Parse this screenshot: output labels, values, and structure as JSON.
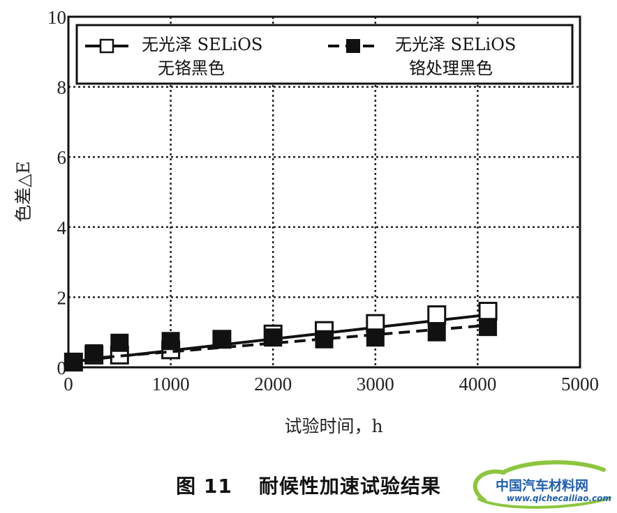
{
  "chart_data": {
    "type": "line",
    "title": "",
    "xlabel": "试验时间，h",
    "ylabel": "色差△E",
    "xlim": [
      0,
      5000
    ],
    "ylim": [
      0,
      10
    ],
    "xticks": [
      "0",
      "1000",
      "2000",
      "3000",
      "4000",
      "5000"
    ],
    "yticks": [
      "0",
      "2",
      "4",
      "6",
      "8",
      "10"
    ],
    "grid": true,
    "legend_position": "top",
    "series": [
      {
        "name_lines": [
          "无光泽 SELiOS",
          "无铬黑色"
        ],
        "marker": "open-square",
        "line_style": "solid",
        "x": [
          50,
          250,
          500,
          1000,
          1500,
          2000,
          2500,
          3000,
          3600,
          4100
        ],
        "y": [
          0.15,
          0.35,
          0.35,
          0.5,
          0.8,
          0.95,
          1.05,
          1.25,
          1.5,
          1.6
        ],
        "fit_line": {
          "x": [
            0,
            4100
          ],
          "y": [
            0.15,
            1.5
          ]
        }
      },
      {
        "name_lines": [
          "无光泽 SELiOS",
          "铬处理黑色"
        ],
        "marker": "filled-square",
        "line_style": "dashed",
        "x": [
          50,
          250,
          500,
          1000,
          1500,
          2000,
          2500,
          3000,
          3600,
          4100
        ],
        "y": [
          0.15,
          0.4,
          0.7,
          0.75,
          0.8,
          0.85,
          0.8,
          0.85,
          1.0,
          1.15
        ],
        "fit_line": {
          "x": [
            0,
            4100
          ],
          "y": [
            0.2,
            1.2
          ]
        }
      }
    ]
  },
  "caption": {
    "figure_number": "图 11",
    "text": "耐候性加速试验结果"
  },
  "watermark": {
    "site_name": "中国汽车材料网",
    "url": "www.qichecailiao.com",
    "logo_color": "#8cc63f",
    "text_color": "#1f5fb0"
  }
}
